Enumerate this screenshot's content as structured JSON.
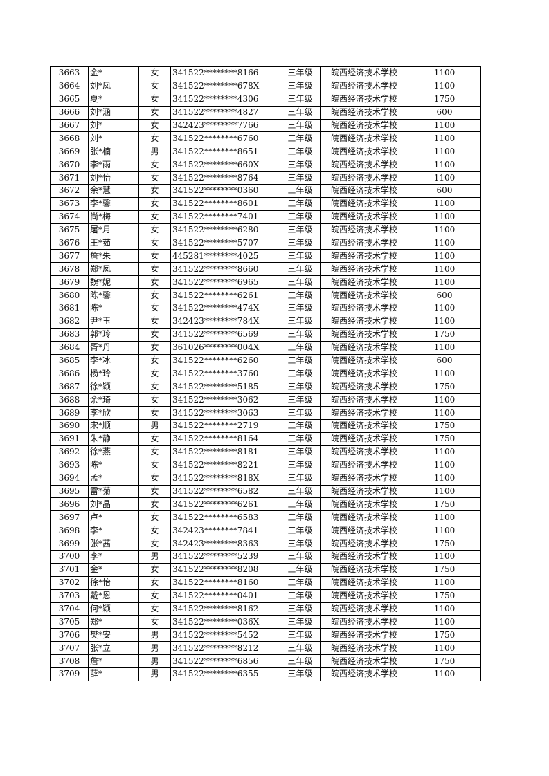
{
  "table": {
    "rows": [
      [
        "3663",
        "金*",
        "女",
        "341522********8166",
        "三年级",
        "皖西经济技术学校",
        "1100"
      ],
      [
        "3664",
        "刘*凤",
        "女",
        "341522********678X",
        "三年级",
        "皖西经济技术学校",
        "1100"
      ],
      [
        "3665",
        "夏*",
        "女",
        "341522********4306",
        "三年级",
        "皖西经济技术学校",
        "1750"
      ],
      [
        "3666",
        "刘*涵",
        "女",
        "341522********4827",
        "三年级",
        "皖西经济技术学校",
        "600"
      ],
      [
        "3667",
        "刘*",
        "女",
        "342423********7766",
        "三年级",
        "皖西经济技术学校",
        "1100"
      ],
      [
        "3668",
        "刘*",
        "女",
        "341522********6760",
        "三年级",
        "皖西经济技术学校",
        "1100"
      ],
      [
        "3669",
        "张*楠",
        "男",
        "341522********8651",
        "三年级",
        "皖西经济技术学校",
        "1100"
      ],
      [
        "3670",
        "李*雨",
        "女",
        "341522********660X",
        "三年级",
        "皖西经济技术学校",
        "1100"
      ],
      [
        "3671",
        "刘*怡",
        "女",
        "341522********8764",
        "三年级",
        "皖西经济技术学校",
        "1100"
      ],
      [
        "3672",
        "余*慧",
        "女",
        "341522********0360",
        "三年级",
        "皖西经济技术学校",
        "600"
      ],
      [
        "3673",
        "李*馨",
        "女",
        "341522********8601",
        "三年级",
        "皖西经济技术学校",
        "1100"
      ],
      [
        "3674",
        "尚*梅",
        "女",
        "341522********7401",
        "三年级",
        "皖西经济技术学校",
        "1100"
      ],
      [
        "3675",
        "屠*月",
        "女",
        "341522********6280",
        "三年级",
        "皖西经济技术学校",
        "1100"
      ],
      [
        "3676",
        "王*茹",
        "女",
        "341522********5707",
        "三年级",
        "皖西经济技术学校",
        "1100"
      ],
      [
        "3677",
        "詹*朱",
        "女",
        "445281********4025",
        "三年级",
        "皖西经济技术学校",
        "1100"
      ],
      [
        "3678",
        "郑*凤",
        "女",
        "341522********8660",
        "三年级",
        "皖西经济技术学校",
        "1100"
      ],
      [
        "3679",
        "魏*妮",
        "女",
        "341522********6965",
        "三年级",
        "皖西经济技术学校",
        "1100"
      ],
      [
        "3680",
        "陈*馨",
        "女",
        "341522********6261",
        "三年级",
        "皖西经济技术学校",
        "600"
      ],
      [
        "3681",
        "陈*",
        "女",
        "341522********474X",
        "三年级",
        "皖西经济技术学校",
        "1100"
      ],
      [
        "3682",
        "尹*玉",
        "女",
        "342423********784X",
        "三年级",
        "皖西经济技术学校",
        "1100"
      ],
      [
        "3683",
        "郭*玲",
        "女",
        "341522********6569",
        "三年级",
        "皖西经济技术学校",
        "1750"
      ],
      [
        "3684",
        "胥*丹",
        "女",
        "361026********004X",
        "三年级",
        "皖西经济技术学校",
        "1100"
      ],
      [
        "3685",
        "李*冰",
        "女",
        "341522********6260",
        "三年级",
        "皖西经济技术学校",
        "600"
      ],
      [
        "3686",
        "杨*玲",
        "女",
        "341522********3760",
        "三年级",
        "皖西经济技术学校",
        "1100"
      ],
      [
        "3687",
        "徐*颖",
        "女",
        "341522********5185",
        "三年级",
        "皖西经济技术学校",
        "1750"
      ],
      [
        "3688",
        "余*琦",
        "女",
        "341522********3062",
        "三年级",
        "皖西经济技术学校",
        "1100"
      ],
      [
        "3689",
        "李*欣",
        "女",
        "341522********3063",
        "三年级",
        "皖西经济技术学校",
        "1100"
      ],
      [
        "3690",
        "宋*顺",
        "男",
        "341522********2719",
        "三年级",
        "皖西经济技术学校",
        "1750"
      ],
      [
        "3691",
        "朱*静",
        "女",
        "341522********8164",
        "三年级",
        "皖西经济技术学校",
        "1750"
      ],
      [
        "3692",
        "徐*燕",
        "女",
        "341522********8181",
        "三年级",
        "皖西经济技术学校",
        "1100"
      ],
      [
        "3693",
        "陈*",
        "女",
        "341522********8221",
        "三年级",
        "皖西经济技术学校",
        "1100"
      ],
      [
        "3694",
        "孟*",
        "女",
        "341522********818X",
        "三年级",
        "皖西经济技术学校",
        "1100"
      ],
      [
        "3695",
        "雷*菊",
        "女",
        "341522********6582",
        "三年级",
        "皖西经济技术学校",
        "1100"
      ],
      [
        "3696",
        "刘*晶",
        "女",
        "341522********6261",
        "三年级",
        "皖西经济技术学校",
        "1750"
      ],
      [
        "3697",
        "卢*",
        "女",
        "341522********6583",
        "三年级",
        "皖西经济技术学校",
        "1100"
      ],
      [
        "3698",
        "李*",
        "女",
        "342423********7841",
        "三年级",
        "皖西经济技术学校",
        "1100"
      ],
      [
        "3699",
        "张*茜",
        "女",
        "342423********8363",
        "三年级",
        "皖西经济技术学校",
        "1750"
      ],
      [
        "3700",
        "李*",
        "男",
        "341522********5239",
        "三年级",
        "皖西经济技术学校",
        "1100"
      ],
      [
        "3701",
        "金*",
        "女",
        "341522********8208",
        "三年级",
        "皖西经济技术学校",
        "1750"
      ],
      [
        "3702",
        "徐*怡",
        "女",
        "341522********8160",
        "三年级",
        "皖西经济技术学校",
        "1100"
      ],
      [
        "3703",
        "戴*恩",
        "女",
        "341522********0401",
        "三年级",
        "皖西经济技术学校",
        "1750"
      ],
      [
        "3704",
        "何*颖",
        "女",
        "341522********8162",
        "三年级",
        "皖西经济技术学校",
        "1100"
      ],
      [
        "3705",
        "郑*",
        "女",
        "341522********036X",
        "三年级",
        "皖西经济技术学校",
        "1100"
      ],
      [
        "3706",
        "樊*安",
        "男",
        "341522********5452",
        "三年级",
        "皖西经济技术学校",
        "1750"
      ],
      [
        "3707",
        "张*立",
        "男",
        "341522********8212",
        "三年级",
        "皖西经济技术学校",
        "1100"
      ],
      [
        "3708",
        "詹*",
        "男",
        "341522********6856",
        "三年级",
        "皖西经济技术学校",
        "1750"
      ],
      [
        "3709",
        "薛*",
        "男",
        "341522********6355",
        "三年级",
        "皖西经济技术学校",
        "1100"
      ]
    ]
  }
}
